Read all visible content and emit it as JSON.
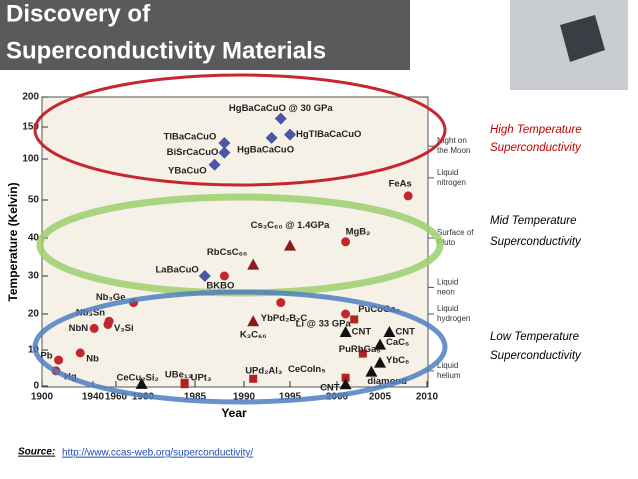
{
  "slide": {
    "title": [
      "Discovery of",
      "Superconductivity Materials"
    ],
    "annotations": [
      [
        "High Temperature",
        "Superconductivity"
      ],
      [
        "Mid Temperature",
        "Superconductivity"
      ],
      [
        "Low Temperature",
        "Superconductivity"
      ]
    ],
    "source_label": "Source:",
    "source_url": "http://www.ccas-web.org/superconductivity/"
  },
  "chart_data": {
    "type": "scatter",
    "xlabel": "Year",
    "ylabel": "Temperature (Kelvin)",
    "xlim": [
      1900,
      2010
    ],
    "xticks": [
      1900,
      1940,
      1960,
      1980,
      1985,
      1990,
      1995,
      2000,
      2005,
      2010
    ],
    "ylim": [
      0,
      200
    ],
    "yticks": [
      0,
      10,
      20,
      30,
      40,
      50,
      100,
      150,
      200
    ],
    "labels": [
      "Hg",
      "Pb",
      "Nb",
      "NbN",
      "V₃Si",
      "Nb₃Sn",
      "Nb₃Ge",
      "CeCu₂Si₂",
      "UBe₁₃",
      "UPt₃",
      "LaBaCuO",
      "BKBO",
      "YBaCuO",
      "BiSrCaCuO",
      "TlBaCaCuO",
      "HgBaCaCuO",
      "HgTlBaCaCuO",
      "HgBaCaCuO @ 30 GPa",
      "UPd₂Al₃",
      "K₃C₆₀",
      "RbCsC₆₀",
      "Cs₃C₆₀ @ 1.4GPa",
      "YbPd₂B₂C",
      "MgB₂",
      "Li @ 33 GPa",
      "PuCoGa₅",
      "PuRhGa₅",
      "CeCoIn₅",
      "CNT",
      "CNT",
      "CNT",
      "CaC₆",
      "YbC₆",
      "diamond",
      "FeAs"
    ],
    "x": [
      1911,
      1913,
      1930,
      1941,
      1953,
      1954,
      1973,
      1979,
      1984,
      1984,
      1986,
      1988,
      1987,
      1988,
      1988,
      1993,
      1995,
      1994,
      1991,
      1991,
      1991,
      1995,
      1994,
      2001,
      2001,
      2002,
      2003,
      2001,
      2001,
      2001,
      2006,
      2005,
      2005,
      2004,
      2008
    ],
    "values": [
      4.2,
      7.2,
      9.2,
      16,
      17.1,
      18,
      23,
      0.6,
      0.9,
      0.5,
      30,
      30,
      93,
      110,
      125,
      133,
      138,
      164,
      2,
      18,
      33,
      38,
      23,
      39,
      20,
      18.5,
      9,
      2.3,
      15,
      0.5,
      15,
      11.5,
      6.5,
      4,
      55
    ],
    "markers": [
      "circle",
      "circle",
      "circle",
      "circle",
      "circle",
      "circle",
      "circle",
      "triangle",
      "square",
      "square",
      "diamond",
      "circle",
      "diamond",
      "diamond",
      "diamond",
      "diamond",
      "diamond",
      "diamond",
      "square",
      "triangle",
      "triangle",
      "triangle",
      "circle",
      "circle",
      "circle",
      "square",
      "square",
      "square",
      "triangle",
      "triangle",
      "triangle",
      "triangle",
      "triangle",
      "triangle",
      "circle"
    ],
    "colors": [
      "#c1272d",
      "#c1272d",
      "#c1272d",
      "#c1272d",
      "#c1272d",
      "#c1272d",
      "#c1272d",
      "#111111",
      "#b22222",
      "#b22222",
      "#4b57a6",
      "#c1272d",
      "#4b57a6",
      "#4b57a6",
      "#4b57a6",
      "#4b57a6",
      "#4b57a6",
      "#4b57a6",
      "#b22222",
      "#8b1a1a",
      "#8b1a1a",
      "#8b1a1a",
      "#c1272d",
      "#c1272d",
      "#c1272d",
      "#b22222",
      "#b22222",
      "#b22222",
      "#111111",
      "#111111",
      "#111111",
      "#111111",
      "#111111",
      "#111111",
      "#c1272d"
    ],
    "reference_levels": [
      {
        "label": "Night on the Moon",
        "value": 120
      },
      {
        "label": "Liquid nitrogen",
        "value": 77
      },
      {
        "label": "Surface of Pluto",
        "value": 40
      },
      {
        "label": "Liquid neon",
        "value": 27
      },
      {
        "label": "Liquid hydrogen",
        "value": 20
      },
      {
        "label": "Liquid helium",
        "value": 4.2
      }
    ]
  }
}
